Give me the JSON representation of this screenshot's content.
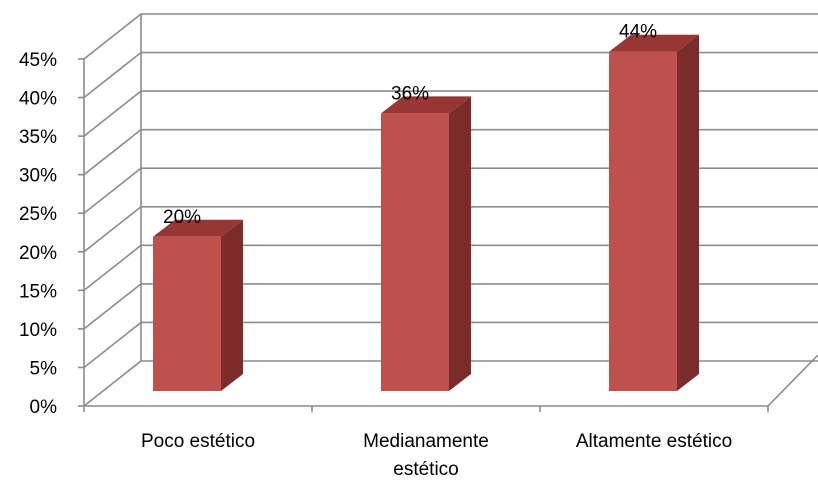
{
  "chart_data": {
    "type": "bar",
    "style": "3d-column",
    "categories": [
      "Poco estético",
      "Medianamente estético",
      "Altamente estético"
    ],
    "category_label_lines": [
      [
        "Poco estético"
      ],
      [
        "Medianamente",
        "estético"
      ],
      [
        "Altamente estético"
      ]
    ],
    "values": [
      20,
      36,
      44
    ],
    "data_labels": [
      "20%",
      "36%",
      "44%"
    ],
    "y_ticks": [
      0,
      5,
      10,
      15,
      20,
      25,
      30,
      35,
      40,
      45
    ],
    "y_tick_labels": [
      "0%",
      "5%",
      "10%",
      "15%",
      "20%",
      "25%",
      "30%",
      "35%",
      "40%",
      "45%"
    ],
    "ylim": [
      0,
      45
    ],
    "grid": true,
    "legend": "none",
    "title": "",
    "xlabel": "",
    "ylabel": "",
    "colors": {
      "bar_front": "#c0504d",
      "bar_side": "#7b2c2a",
      "bar_top": "#983633",
      "grid": "#8c8c8c"
    }
  }
}
